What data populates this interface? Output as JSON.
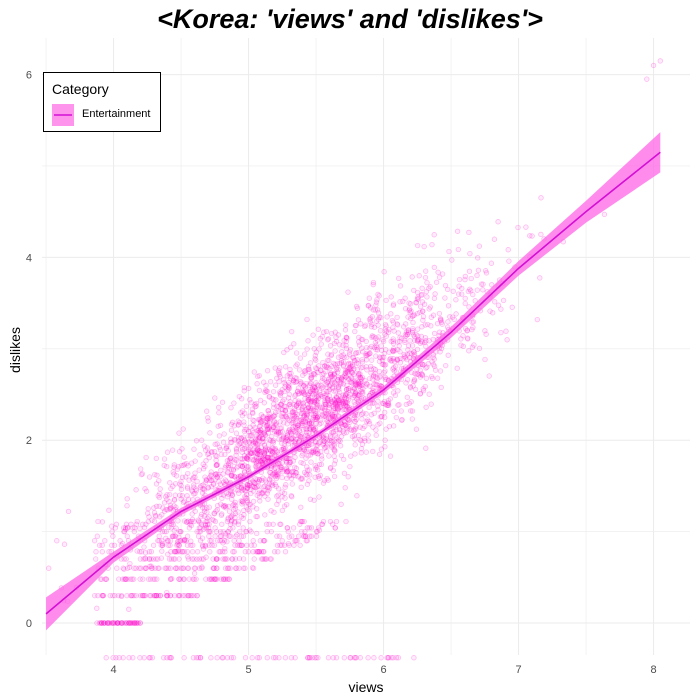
{
  "chart_data": {
    "type": "scatter",
    "title": "<Korea: 'views' and 'dislikes'>",
    "xlabel": "views",
    "ylabel": "dislikes",
    "xlim": [
      3.47,
      8.27
    ],
    "ylim": [
      -0.35,
      6.4
    ],
    "x_ticks": [
      4,
      5,
      6,
      7,
      8
    ],
    "y_ticks": [
      0,
      2,
      4,
      6
    ],
    "grid": true,
    "legend": {
      "title": "Category",
      "position": "top-left",
      "entries": [
        {
          "name": "Entertainment",
          "color": "#FF00CC"
        }
      ]
    },
    "series": [
      {
        "name": "Entertainment",
        "color": "#FF00CC",
        "point_cloud": {
          "n": 2600,
          "x_center": 5.4,
          "x_spread": 0.62,
          "slope": 1.05,
          "intercept": -3.5,
          "noise": 0.38
        },
        "discrete_levels": [
          -0.38,
          0,
          0.3,
          0.48,
          0.6,
          0.7,
          0.78,
          0.85,
          0.9,
          0.95,
          1.0,
          1.04,
          1.08,
          1.11
        ],
        "outliers": [
          [
            7.95,
            5.95
          ],
          [
            8.0,
            6.1
          ],
          [
            8.05,
            6.15
          ],
          [
            3.52,
            0.6
          ],
          [
            3.58,
            0.9
          ]
        ],
        "smooth": {
          "x": [
            3.5,
            4.0,
            4.5,
            5.0,
            5.5,
            6.0,
            6.5,
            7.0,
            7.5,
            8.05
          ],
          "y": [
            0.1,
            0.72,
            1.22,
            1.6,
            2.05,
            2.55,
            3.18,
            3.88,
            4.5,
            5.15
          ],
          "band": [
            0.18,
            0.06,
            0.04,
            0.03,
            0.03,
            0.04,
            0.06,
            0.08,
            0.12,
            0.22
          ]
        }
      }
    ]
  },
  "colors": {
    "point": "#FF00CC",
    "line": "#D40FD4",
    "band": "#FF66E6",
    "grid": "#EBEBEB"
  }
}
